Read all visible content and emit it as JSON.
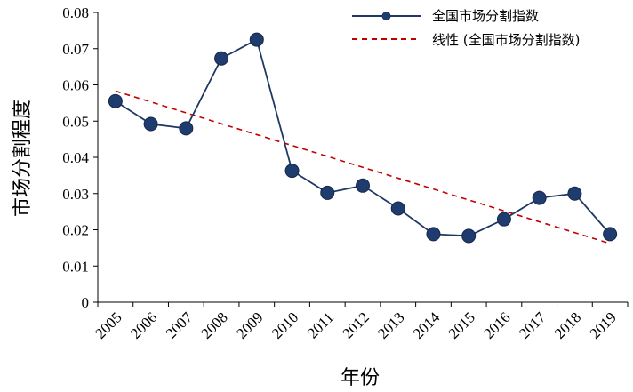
{
  "chart_data": {
    "type": "line",
    "xlabel": "年份",
    "ylabel": "市场分割程度",
    "ylim": [
      0,
      0.08
    ],
    "yticks": [
      "0",
      "0.01",
      "0.02",
      "0.03",
      "0.04",
      "0.05",
      "0.06",
      "0.07",
      "0.08"
    ],
    "categories": [
      "2005",
      "2006",
      "2007",
      "2008",
      "2009",
      "2010",
      "2011",
      "2012",
      "2013",
      "2014",
      "2015",
      "2016",
      "2017",
      "2018",
      "2019"
    ],
    "series": [
      {
        "name": "全国市场分割指数",
        "color": "#1f3864",
        "marker_color": "#1f3c6e",
        "values": [
          0.0555,
          0.0492,
          0.048,
          0.0673,
          0.0725,
          0.0363,
          0.0302,
          0.0322,
          0.0259,
          0.0188,
          0.0183,
          0.0229,
          0.0288,
          0.03,
          0.0188
        ]
      },
      {
        "name": "线性 (全国市场分割指数)",
        "color": "#c00000",
        "style": "dashed",
        "trend_start": 0.0583,
        "trend_end": 0.0162
      }
    ],
    "grid": false,
    "legend_position": "top-right"
  }
}
